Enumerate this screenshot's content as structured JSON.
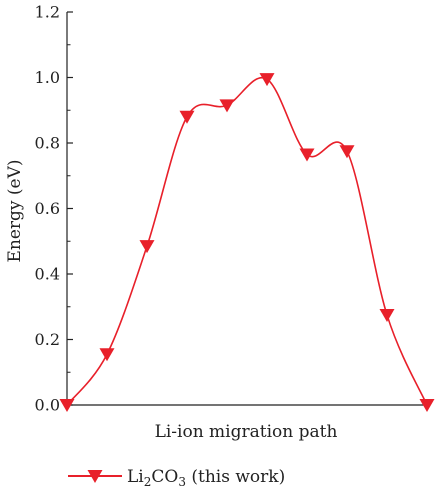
{
  "chart_data": {
    "type": "line",
    "xlabel": "Li-ion migration path",
    "ylabel": "Energy (eV)",
    "ylim": [
      0,
      1.2
    ],
    "yticks": [
      "0.0",
      "0.2",
      "0.4",
      "0.6",
      "0.8",
      "1.0",
      "1.2"
    ],
    "grid": false,
    "legend_position": "bottom",
    "line_color": "#e8202a",
    "series": [
      {
        "name": "Li2CO3 (this work)",
        "legend": {
          "main": "Li",
          "sub1": "2",
          "mid": "CO",
          "sub2": "3",
          "rest": " (this work)"
        },
        "x": [
          0,
          1,
          2,
          3,
          4,
          5,
          6,
          7,
          8,
          9
        ],
        "values": [
          0.0,
          0.155,
          0.485,
          0.88,
          0.915,
          0.995,
          0.765,
          0.775,
          0.275,
          0.0
        ]
      }
    ]
  }
}
